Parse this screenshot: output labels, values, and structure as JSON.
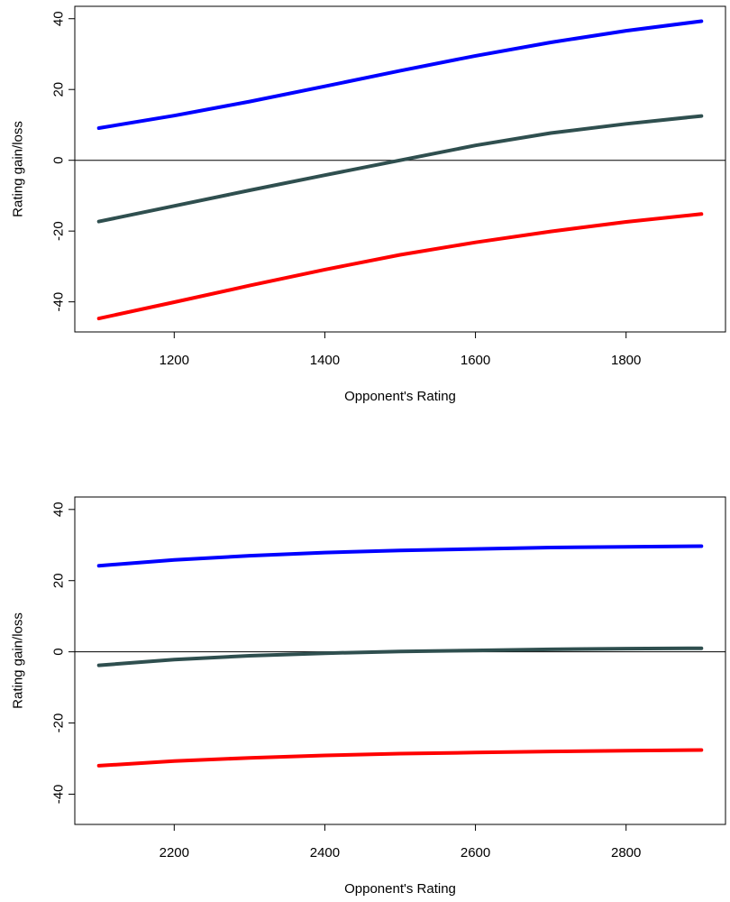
{
  "chart_data": [
    {
      "type": "line",
      "title": "",
      "xlabel": "Opponent's Rating",
      "ylabel": "Rating gain/loss",
      "xlim": [
        1068,
        1932
      ],
      "ylim": [
        -48.5,
        43.5
      ],
      "xticks": [
        1200,
        1400,
        1600,
        1800
      ],
      "yticks": [
        -40,
        -20,
        0,
        20,
        40
      ],
      "xtick_labels": [
        "1200",
        "1400",
        "1600",
        "1800"
      ],
      "ytick_labels": [
        "-40",
        "-20",
        "0",
        "20",
        "40"
      ],
      "hline": 0,
      "grid": false,
      "legend": "none",
      "x": [
        1100,
        1200,
        1300,
        1400,
        1500,
        1600,
        1700,
        1800,
        1900
      ],
      "series": [
        {
          "color": "#0000ff",
          "values": [
            9.1,
            12.6,
            16.6,
            20.9,
            25.3,
            29.5,
            33.3,
            36.6,
            39.3
          ]
        },
        {
          "color": "#2f4f4f",
          "values": [
            -17.3,
            -12.9,
            -8.5,
            -4.2,
            0.0,
            4.2,
            7.7,
            10.3,
            12.5
          ]
        },
        {
          "color": "#ff0000",
          "values": [
            -44.7,
            -40.1,
            -35.4,
            -30.9,
            -26.7,
            -23.2,
            -20.1,
            -17.4,
            -15.2
          ]
        }
      ]
    },
    {
      "type": "line",
      "title": "",
      "xlabel": "Opponent's Rating",
      "ylabel": "Rating gain/loss",
      "xlim": [
        2068,
        2932
      ],
      "ylim": [
        -48.5,
        43.5
      ],
      "xticks": [
        2200,
        2400,
        2600,
        2800
      ],
      "yticks": [
        -40,
        -20,
        0,
        20,
        40
      ],
      "xtick_labels": [
        "2200",
        "2400",
        "2600",
        "2800"
      ],
      "ytick_labels": [
        "-40",
        "-20",
        "0",
        "20",
        "40"
      ],
      "hline": 0,
      "grid": false,
      "legend": "none",
      "x": [
        2100,
        2200,
        2300,
        2400,
        2500,
        2600,
        2700,
        2800,
        2900
      ],
      "series": [
        {
          "color": "#0000ff",
          "values": [
            24.2,
            25.8,
            27.0,
            27.9,
            28.5,
            28.9,
            29.3,
            29.5,
            29.7
          ]
        },
        {
          "color": "#2f4f4f",
          "values": [
            -3.8,
            -2.2,
            -1.1,
            -0.4,
            0.1,
            0.4,
            0.7,
            0.9,
            1.0
          ]
        },
        {
          "color": "#ff0000",
          "values": [
            -32.0,
            -30.7,
            -29.8,
            -29.1,
            -28.6,
            -28.3,
            -28.0,
            -27.8,
            -27.6
          ]
        }
      ]
    }
  ]
}
